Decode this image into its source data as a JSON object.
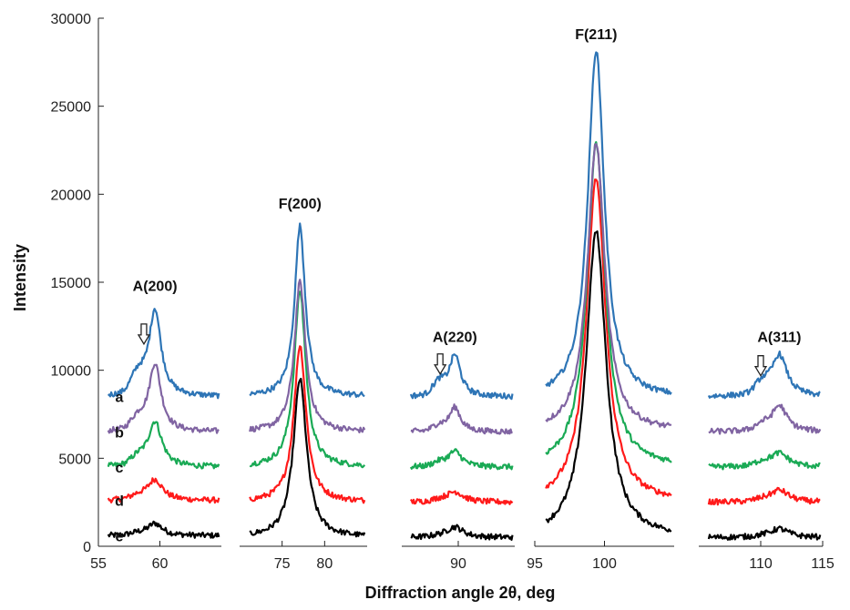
{
  "chart_data": {
    "type": "line",
    "xlabel": "Diffraction angle 2θ, deg",
    "ylabel": "Intensity",
    "ylim": [
      0,
      30000
    ],
    "yticks": [
      0,
      5000,
      10000,
      15000,
      20000,
      25000,
      30000
    ],
    "grid": false,
    "colors": {
      "a": "#2e75b6",
      "b": "#8064a2",
      "c": "#1aaa55",
      "d": "#ff1a1a",
      "e": "#000000"
    },
    "panels": [
      {
        "xlim": [
          55,
          65
        ],
        "xticks": [
          55,
          60
        ],
        "peak": {
          "label": "A(200)",
          "center": 59.6,
          "label_y": 14500
        },
        "arrow": {
          "x": 58.7,
          "y": 11800
        },
        "series": [
          {
            "name": "a",
            "baseline": 8500,
            "height": 5000,
            "width": 0.8,
            "shoulder": 1000
          },
          {
            "name": "b",
            "baseline": 6500,
            "height": 3900,
            "width": 0.8,
            "shoulder": 600
          },
          {
            "name": "c",
            "baseline": 4500,
            "height": 2600,
            "width": 0.9,
            "shoulder": 400
          },
          {
            "name": "d",
            "baseline": 2600,
            "height": 1200,
            "width": 1.0,
            "shoulder": 200
          },
          {
            "name": "e",
            "baseline": 600,
            "height": 700,
            "width": 1.0,
            "shoulder": 100
          }
        ]
      },
      {
        "xlim": [
          70,
          85
        ],
        "xticks": [
          75,
          80
        ],
        "peak": {
          "label": "F(200)",
          "center": 77.1,
          "label_y": 19200
        },
        "series": [
          {
            "name": "a",
            "baseline": 8500,
            "height": 9700,
            "width": 1.0
          },
          {
            "name": "b",
            "baseline": 6500,
            "height": 8500,
            "width": 1.05
          },
          {
            "name": "c",
            "baseline": 4500,
            "height": 10000,
            "width": 1.1
          },
          {
            "name": "d",
            "baseline": 2500,
            "height": 8900,
            "width": 1.15
          },
          {
            "name": "e",
            "baseline": 500,
            "height": 9000,
            "width": 1.25
          }
        ]
      },
      {
        "xlim": [
          85,
          95
        ],
        "xticks": [
          90
        ],
        "peak": {
          "label": "A(220)",
          "center": 89.7,
          "label_y": 11600
        },
        "arrow": {
          "x": 88.4,
          "y": 10100
        },
        "series": [
          {
            "name": "a",
            "baseline": 8500,
            "height": 2400,
            "width": 0.8,
            "shoulder": 700
          },
          {
            "name": "b",
            "baseline": 6500,
            "height": 1400,
            "width": 0.8,
            "shoulder": 300
          },
          {
            "name": "c",
            "baseline": 4500,
            "height": 900,
            "width": 1.0,
            "shoulder": 200
          },
          {
            "name": "d",
            "baseline": 2500,
            "height": 600,
            "width": 1.2,
            "shoulder": 100
          },
          {
            "name": "e",
            "baseline": 500,
            "height": 600,
            "width": 1.2,
            "shoulder": 50
          }
        ]
      },
      {
        "xlim": [
          95,
          105
        ],
        "xticks": [
          95,
          100
        ],
        "peak": {
          "label": "F(211)",
          "center": 99.4,
          "label_y": 28800
        },
        "series": [
          {
            "name": "a",
            "baseline": 8400,
            "height": 19800,
            "width": 0.95
          },
          {
            "name": "b",
            "baseline": 6500,
            "height": 16400,
            "width": 1.0
          },
          {
            "name": "c",
            "baseline": 4500,
            "height": 18400,
            "width": 1.05
          },
          {
            "name": "d",
            "baseline": 2500,
            "height": 18400,
            "width": 1.1
          },
          {
            "name": "e",
            "baseline": 500,
            "height": 17400,
            "width": 1.15
          }
        ]
      },
      {
        "xlim": [
          105,
          115
        ],
        "xticks": [
          110,
          115
        ],
        "peak": {
          "label": "A(311)",
          "center": 111.5,
          "label_y": 11600
        },
        "arrow": {
          "x": 110.0,
          "y": 10000
        },
        "series": [
          {
            "name": "a",
            "baseline": 8500,
            "height": 2400,
            "width": 1.0,
            "shoulder": 600
          },
          {
            "name": "b",
            "baseline": 6500,
            "height": 1500,
            "width": 1.0,
            "shoulder": 300
          },
          {
            "name": "c",
            "baseline": 4500,
            "height": 800,
            "width": 1.2,
            "shoulder": 200
          },
          {
            "name": "d",
            "baseline": 2500,
            "height": 700,
            "width": 1.2,
            "shoulder": 100
          },
          {
            "name": "e",
            "baseline": 500,
            "height": 500,
            "width": 1.2,
            "shoulder": 50
          }
        ]
      }
    ]
  }
}
